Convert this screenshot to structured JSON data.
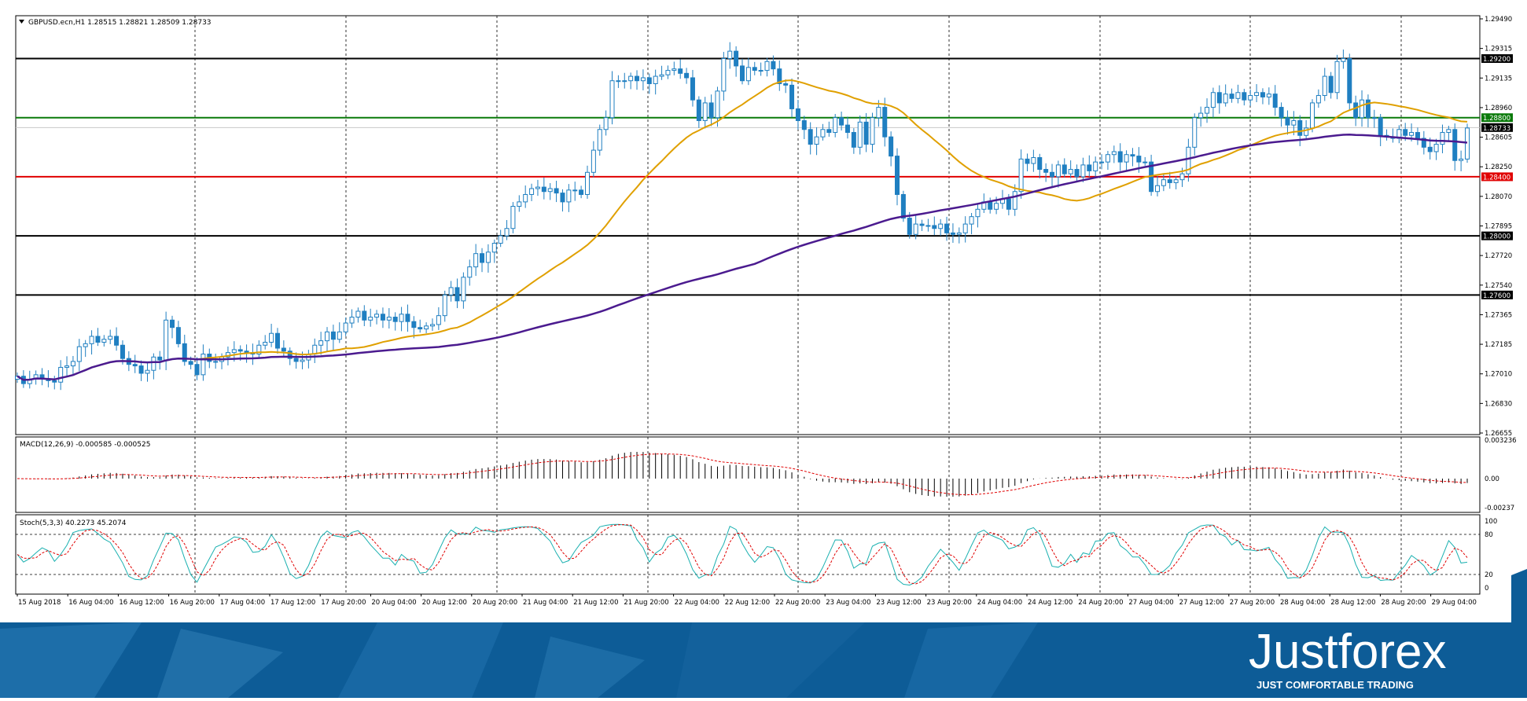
{
  "chart_header": {
    "symbol_line": "GBPUSD.ecn,H1  1.28515 1.28821 1.28509 1.28733"
  },
  "price_axis_labels": [
    "1.29490",
    "1.29315",
    "1.29135",
    "1.28960",
    "1.28605",
    "1.28250",
    "1.28070",
    "1.27895",
    "1.27720",
    "1.27540",
    "1.27365",
    "1.27185",
    "1.27010",
    "1.26830",
    "1.26655"
  ],
  "level_tags": [
    {
      "value": "1.29200",
      "color": "#000000"
    },
    {
      "value": "1.28800",
      "color": "#0a7a0a"
    },
    {
      "value": "1.28733",
      "color": "#000000"
    },
    {
      "value": "1.28400",
      "color": "#e00000"
    },
    {
      "value": "1.28000",
      "color": "#000000"
    },
    {
      "value": "1.27600",
      "color": "#000000"
    }
  ],
  "time_axis_labels": [
    "15 Aug 2018",
    "16 Aug 04:00",
    "16 Aug 12:00",
    "16 Aug 20:00",
    "17 Aug 04:00",
    "17 Aug 12:00",
    "17 Aug 20:00",
    "20 Aug 04:00",
    "20 Aug 12:00",
    "20 Aug 20:00",
    "21 Aug 04:00",
    "21 Aug 12:00",
    "21 Aug 20:00",
    "22 Aug 04:00",
    "22 Aug 12:00",
    "22 Aug 20:00",
    "23 Aug 04:00",
    "23 Aug 12:00",
    "23 Aug 20:00",
    "24 Aug 04:00",
    "24 Aug 12:00",
    "24 Aug 20:00",
    "27 Aug 04:00",
    "27 Aug 12:00",
    "27 Aug 20:00",
    "28 Aug 04:00",
    "28 Aug 12:00",
    "28 Aug 20:00",
    "29 Aug 04:00"
  ],
  "macd_panel": {
    "header": "MACD(12,26,9) -0.000585 -0.000525",
    "axis_labels": [
      "0.003236",
      "0.00",
      "-0.00237"
    ]
  },
  "stoch_panel": {
    "header": "Stoch(5,3,3) 40.2273 45.2074",
    "axis_labels": [
      "100",
      "80",
      "20",
      "0"
    ]
  },
  "brand": {
    "name": "Justforex",
    "tagline": "JUST COMFORTABLE TRADING"
  },
  "chart_data": {
    "type": "candlestick",
    "symbol": "GBPUSD.ecn",
    "timeframe": "H1",
    "last_bar": {
      "open": 1.28515,
      "high": 1.28821,
      "low": 1.28509,
      "close": 1.28733
    },
    "ylim": [
      1.26655,
      1.2949
    ],
    "colors": {
      "up": "#ffffff",
      "down": "#1f7fc1",
      "ma_fast": "#e0a000",
      "ma_slow": "#4b1b8f",
      "macd_signal": "#e00000",
      "stoch_main": "#1ab0b0",
      "stoch_signal": "#e00000"
    },
    "horizontal_levels": [
      {
        "price": 1.292,
        "color": "#000000"
      },
      {
        "price": 1.288,
        "color": "#0a7a0a"
      },
      {
        "price": 1.284,
        "color": "#e00000"
      },
      {
        "price": 1.28,
        "color": "#000000"
      },
      {
        "price": 1.276,
        "color": "#000000"
      }
    ],
    "close_series": [
      1.2705,
      1.27,
      1.2703,
      1.2706,
      1.2703,
      1.2702,
      1.2701,
      1.2711,
      1.2712,
      1.2715,
      1.2725,
      1.2727,
      1.2732,
      1.2728,
      1.273,
      1.2732,
      1.2726,
      1.2717,
      1.2713,
      1.2712,
      1.2707,
      1.2709,
      1.2718,
      1.2716,
      1.2743,
      1.2738,
      1.2727,
      1.2715,
      1.2713,
      1.2706,
      1.272,
      1.2715,
      1.2715,
      1.2718,
      1.2721,
      1.2723,
      1.2722,
      1.2721,
      1.272,
      1.2726,
      1.2728,
      1.2734,
      1.2724,
      1.2722,
      1.2717,
      1.2715,
      1.2716,
      1.272,
      1.2726,
      1.2729,
      1.2735,
      1.273,
      1.2735,
      1.2741,
      1.2745,
      1.2749,
      1.2743,
      1.2745,
      1.2747,
      1.2743,
      1.2745,
      1.2742,
      1.2747,
      1.2742,
      1.2738,
      1.2737,
      1.2739,
      1.274,
      1.2746,
      1.276,
      1.2765,
      1.2756,
      1.2772,
      1.2779,
      1.2788,
      1.2782,
      1.2789,
      1.2795,
      1.28,
      1.2805,
      1.282,
      1.2823,
      1.2828,
      1.2832,
      1.2833,
      1.283,
      1.2832,
      1.2829,
      1.2823,
      1.2831,
      1.2831,
      1.2828,
      1.2843,
      1.2858,
      1.2872,
      1.288,
      1.2905,
      1.2905,
      1.2905,
      1.2908,
      1.2905,
      1.2907,
      1.2903,
      1.2908,
      1.2909,
      1.2912,
      1.2913,
      1.291,
      1.2907,
      1.2892,
      1.2878,
      1.289,
      1.288,
      1.2898,
      1.292,
      1.2925,
      1.2915,
      1.2905,
      1.2914,
      1.2912,
      1.2912,
      1.2918,
      1.2913,
      1.2903,
      1.2902,
      1.2886,
      1.2878,
      1.2872,
      1.2862,
      1.2867,
      1.2872,
      1.287,
      1.288,
      1.2875,
      1.287,
      1.286,
      1.2877,
      1.2862,
      1.288,
      1.2887,
      1.2867,
      1.2854,
      1.2828,
      1.2812,
      1.2801,
      1.2808,
      1.2807,
      1.2807,
      1.2805,
      1.2808,
      1.2802,
      1.2801,
      1.2802,
      1.2808,
      1.2813,
      1.2818,
      1.2823,
      1.2818,
      1.2822,
      1.2825,
      1.2818,
      1.283,
      1.2852,
      1.2849,
      1.2853,
      1.2845,
      1.2843,
      1.284,
      1.2848,
      1.2842,
      1.2845,
      1.284,
      1.2848,
      1.2844,
      1.285,
      1.285,
      1.2855,
      1.2857,
      1.285,
      1.2855,
      1.2854,
      1.285,
      1.285,
      1.283,
      1.2834,
      1.2838,
      1.2836,
      1.2838,
      1.2842,
      1.286,
      1.288,
      1.2883,
      1.2887,
      1.2897,
      1.289,
      1.2896,
      1.2893,
      1.2897,
      1.2892,
      1.2895,
      1.2897,
      1.2894,
      1.2896,
      1.2887,
      1.288,
      1.2875,
      1.2878,
      1.2868,
      1.2873,
      1.289,
      1.2895,
      1.2908,
      1.2897,
      1.2918,
      1.292,
      1.289,
      1.288,
      1.2892,
      1.288,
      1.288,
      1.2868,
      1.2867,
      1.2866,
      1.2872,
      1.2868,
      1.287,
      1.2866,
      1.286,
      1.2857,
      1.2862,
      1.287,
      1.2872,
      1.2851,
      1.2852,
      1.2873
    ]
  }
}
